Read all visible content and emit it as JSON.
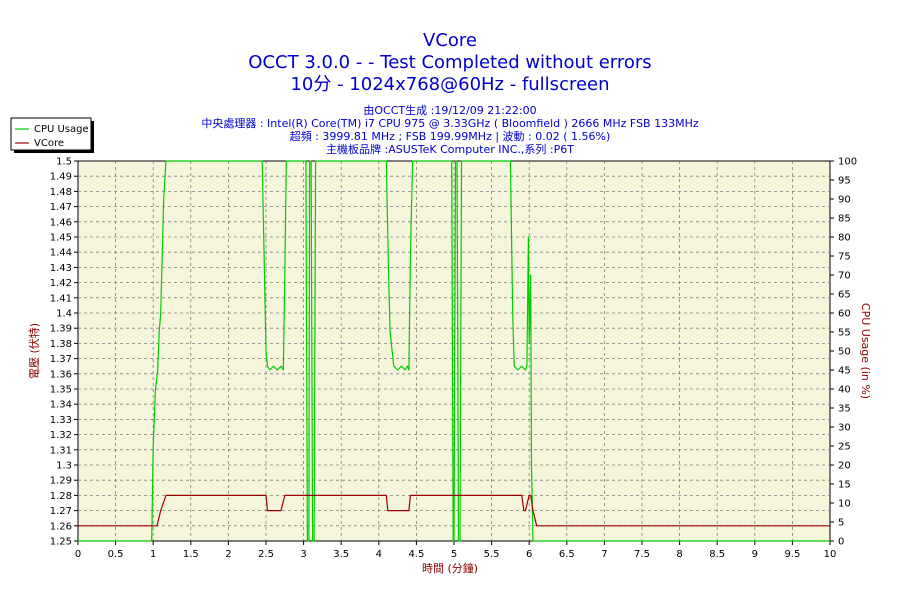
{
  "chart_data": {
    "type": "line",
    "title": "VCore",
    "subtitle_lines": [
      "OCCT 3.0.0 -  - Test Completed without errors",
      "10分 - 1024x768@60Hz - fullscreen"
    ],
    "info_lines": [
      "由OCCT生成 :19/12/09 21:22:00",
      "中央處理器 : Intel(R) Core(TM) i7 CPU 975 @ 3.33GHz ( Bloomfield ) 2666 MHz FSB 133MHz",
      "超頻 : 3999.81 MHz ; FSB 199.99MHz | 波動 : 0.02 ( 1.56%)",
      "主機板品牌 :ASUSTeK Computer INC.,系列 :P6T"
    ],
    "xlabel": "時間 (分鐘)",
    "ylabel_left": "電壓 (伏特)",
    "ylabel_right": "CPU Usage (in %)",
    "xlim": [
      0,
      10
    ],
    "ylim_left": [
      1.25,
      1.5
    ],
    "ylim_right": [
      0,
      100
    ],
    "x_ticks": [
      "0",
      "0.5",
      "1",
      "1.5",
      "2",
      "2.5",
      "3",
      "3.5",
      "4",
      "4.5",
      "5",
      "5.5",
      "6",
      "6.5",
      "7",
      "7.5",
      "8",
      "8.5",
      "9",
      "9.5",
      "10"
    ],
    "y_ticks_left": [
      "1.25",
      "1.26",
      "1.27",
      "1.28",
      "1.29",
      "1.3",
      "1.31",
      "1.32",
      "1.33",
      "1.34",
      "1.35",
      "1.36",
      "1.37",
      "1.38",
      "1.39",
      "1.4",
      "1.41",
      "1.42",
      "1.43",
      "1.44",
      "1.45",
      "1.46",
      "1.47",
      "1.48",
      "1.49",
      "1.5"
    ],
    "y_ticks_right": [
      "0",
      "5",
      "10",
      "15",
      "20",
      "25",
      "30",
      "35",
      "40",
      "45",
      "50",
      "55",
      "60",
      "65",
      "70",
      "75",
      "80",
      "85",
      "90",
      "95",
      "100"
    ],
    "grid": true,
    "legend_position": "top-left",
    "colors": {
      "cpu_usage": "#00cc00",
      "vcore": "#990000",
      "plot_background": "#f5f5dc",
      "title": "#0000cc",
      "axis_label": "#8b0000"
    },
    "series": [
      {
        "name": "CPU Usage",
        "axis": "right",
        "x": [
          0,
          0.98,
          1.0,
          1.03,
          1.06,
          1.08,
          1.1,
          1.12,
          1.14,
          1.17,
          1.18,
          1.2,
          2.45,
          2.5,
          2.52,
          2.55,
          2.6,
          2.65,
          2.7,
          2.73,
          2.75,
          2.77,
          2.8,
          3.03,
          3.05,
          3.07,
          3.08,
          3.1,
          3.12,
          3.14,
          3.16,
          3.3,
          4.1,
          4.13,
          4.15,
          4.2,
          4.25,
          4.3,
          4.35,
          4.38,
          4.4,
          4.42,
          4.45,
          4.97,
          4.99,
          5.0,
          5.02,
          5.04,
          5.06,
          5.08,
          5.1,
          5.2,
          5.75,
          5.78,
          5.8,
          5.85,
          5.9,
          5.95,
          5.97,
          5.99,
          6.0,
          6.02,
          6.03,
          6.05,
          6.1,
          10
        ],
        "values": [
          0,
          0,
          25,
          40,
          45,
          55,
          60,
          75,
          90,
          100,
          100,
          100,
          100,
          50,
          46,
          45,
          46,
          45,
          46,
          45,
          70,
          100,
          100,
          100,
          0,
          0,
          100,
          100,
          0,
          0,
          100,
          100,
          100,
          70,
          55,
          46,
          45,
          46,
          45,
          46,
          45,
          75,
          100,
          100,
          0,
          0,
          100,
          100,
          0,
          0,
          100,
          100,
          100,
          60,
          46,
          45,
          46,
          45,
          46,
          80,
          52,
          70,
          20,
          0,
          0,
          0
        ]
      },
      {
        "name": "VCore",
        "axis": "left",
        "x": [
          0,
          1.0,
          1.05,
          1.1,
          1.17,
          1.2,
          2.5,
          2.52,
          2.55,
          2.7,
          2.75,
          2.8,
          4.1,
          4.12,
          4.15,
          4.4,
          4.42,
          4.45,
          5.9,
          5.93,
          5.95,
          6.0,
          6.02,
          6.05,
          6.1,
          10
        ],
        "values": [
          1.26,
          1.26,
          1.26,
          1.27,
          1.28,
          1.28,
          1.28,
          1.27,
          1.27,
          1.27,
          1.28,
          1.28,
          1.28,
          1.27,
          1.27,
          1.27,
          1.28,
          1.28,
          1.28,
          1.27,
          1.27,
          1.28,
          1.28,
          1.27,
          1.26,
          1.26
        ]
      }
    ]
  }
}
